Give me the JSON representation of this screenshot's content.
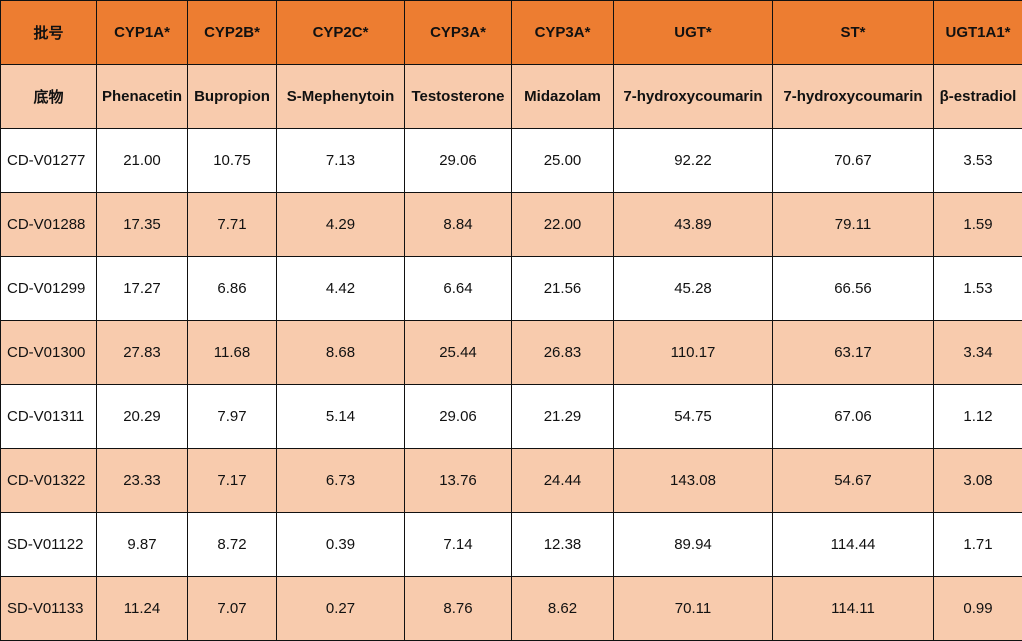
{
  "table": {
    "header_row_1": [
      "批号",
      "CYP1A*",
      "CYP2B*",
      "CYP2C*",
      "CYP3A*",
      "CYP3A*",
      "UGT*",
      "ST*",
      "UGT1A1*"
    ],
    "header_row_2": [
      "底物",
      "Phenacetin",
      "Bupropion",
      "S-Mephenytoin",
      "Testosterone",
      "Midazolam",
      "7-hydroxycoumarin",
      "7-hydroxycoumarin",
      "β-estradiol"
    ],
    "rows": [
      [
        "CD-V01277",
        "21.00",
        "10.75",
        "7.13",
        "29.06",
        "25.00",
        "92.22",
        "70.67",
        "3.53"
      ],
      [
        "CD-V01288",
        "17.35",
        "7.71",
        "4.29",
        "8.84",
        "22.00",
        "43.89",
        "79.11",
        "1.59"
      ],
      [
        "CD-V01299",
        "17.27",
        "6.86",
        "4.42",
        "6.64",
        "21.56",
        "45.28",
        "66.56",
        "1.53"
      ],
      [
        "CD-V01300",
        "27.83",
        "11.68",
        "8.68",
        "25.44",
        "26.83",
        "110.17",
        "63.17",
        "3.34"
      ],
      [
        "CD-V01311",
        "20.29",
        "7.97",
        "5.14",
        "29.06",
        "21.29",
        "54.75",
        "67.06",
        "1.12"
      ],
      [
        "CD-V01322",
        "23.33",
        "7.17",
        "6.73",
        "13.76",
        "24.44",
        "143.08",
        "54.67",
        "3.08"
      ],
      [
        "SD-V01122",
        "9.87",
        "8.72",
        "0.39",
        "7.14",
        "12.38",
        "89.94",
        "114.44",
        "1.71"
      ],
      [
        "SD-V01133",
        "11.24",
        "7.07",
        "0.27",
        "8.76",
        "8.62",
        "70.11",
        "114.11",
        "0.99"
      ]
    ]
  },
  "colors": {
    "header_orange": "#ed7d31",
    "row_peach": "#f8cbad",
    "row_white": "#ffffff",
    "border": "#111111"
  }
}
